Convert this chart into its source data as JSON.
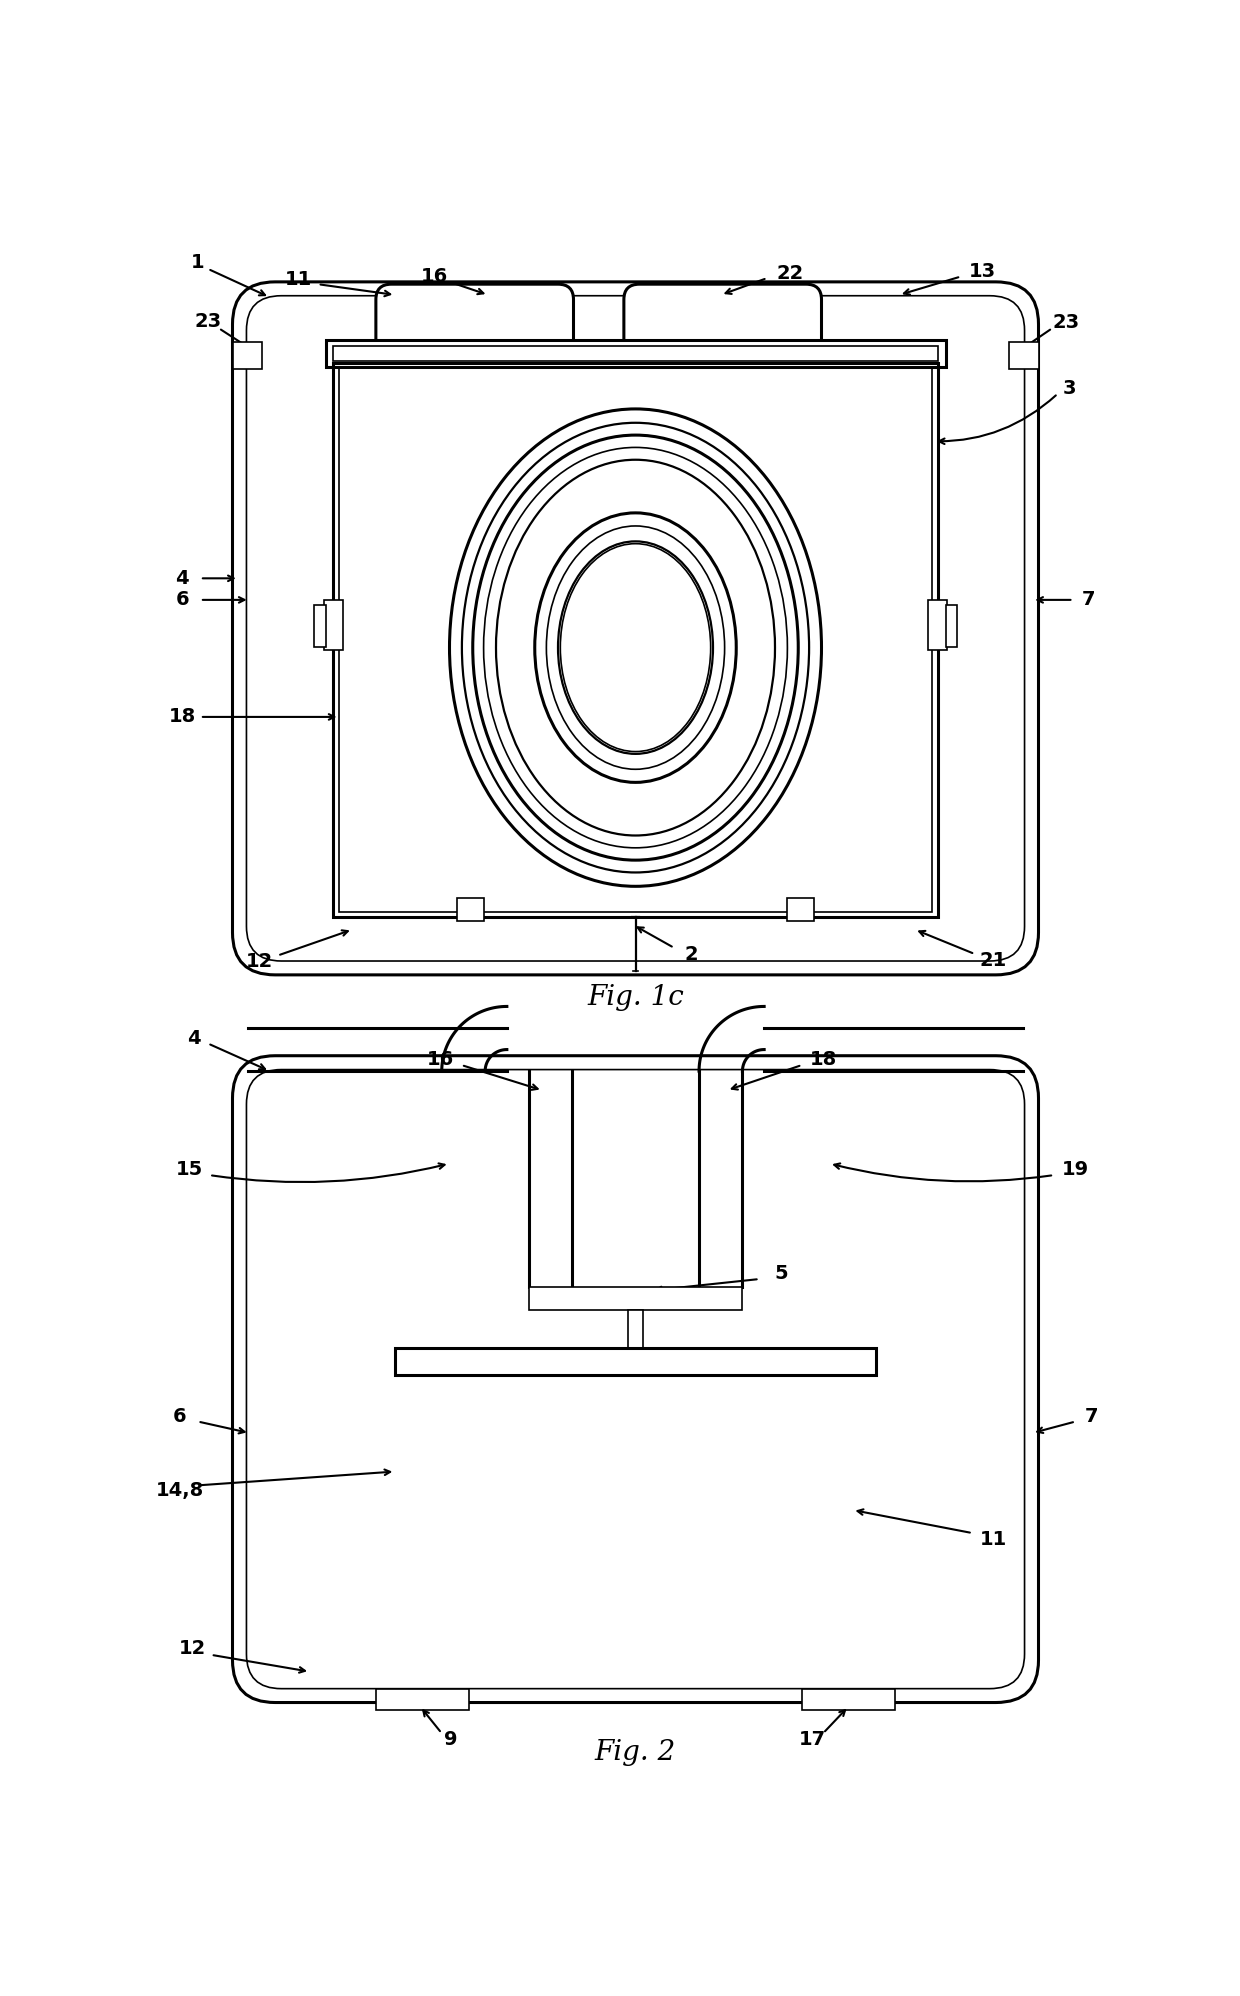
{
  "fig_width": 12.4,
  "fig_height": 19.96,
  "bg_color": "#ffffff",
  "line_color": "#000000",
  "lw_main": 2.2,
  "lw_thin": 1.2,
  "lw_med": 1.6,
  "label_fs": 14
}
